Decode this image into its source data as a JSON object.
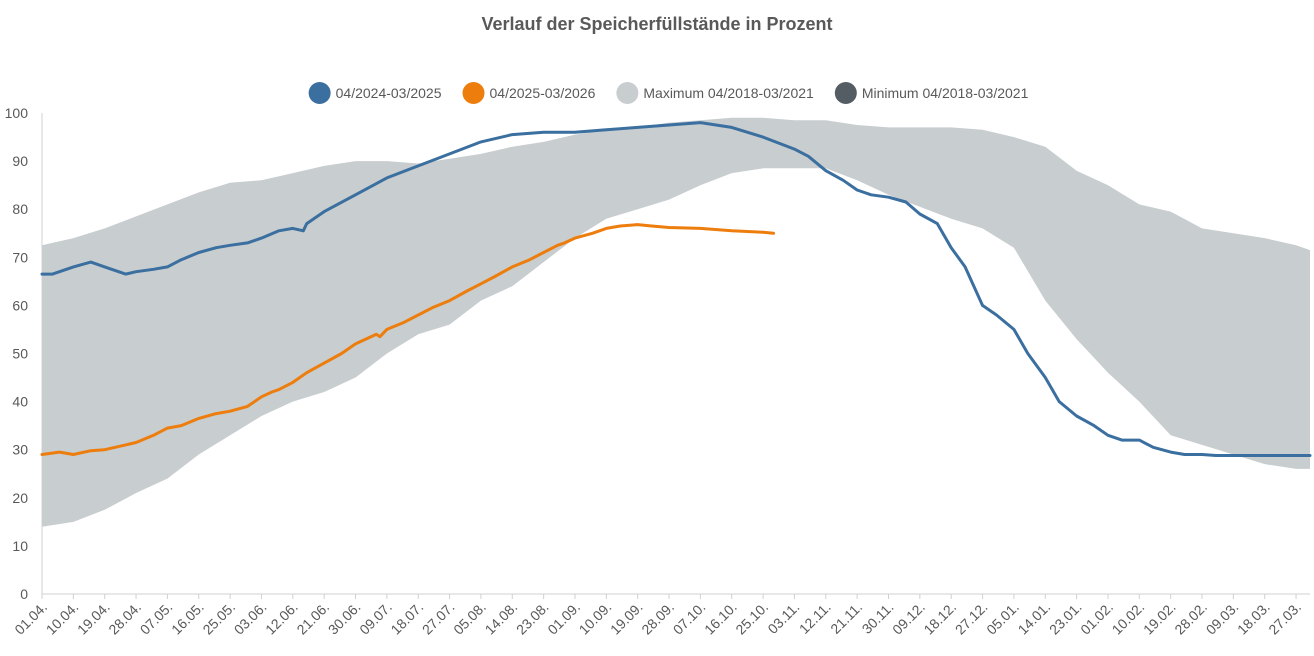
{
  "chart_data": {
    "type": "line",
    "title": "Verlauf der Speicherfüllstände in Prozent",
    "xlabel": "",
    "ylabel": "",
    "ylim": [
      0,
      100
    ],
    "yticks": [
      0,
      10,
      20,
      30,
      40,
      50,
      60,
      70,
      80,
      90,
      100
    ],
    "grid": false,
    "legend_position": "top",
    "x_labels": [
      "01.04.",
      "10.04.",
      "19.04.",
      "28.04.",
      "07.05.",
      "16.05.",
      "25.05.",
      "03.06.",
      "12.06.",
      "21.06.",
      "30.06.",
      "09.07.",
      "18.07.",
      "27.07.",
      "05.08.",
      "14.08.",
      "23.08.",
      "01.09.",
      "10.09.",
      "19.09.",
      "28.09.",
      "07.10.",
      "16.10.",
      "25.10.",
      "03.11.",
      "12.11.",
      "21.11.",
      "30.11.",
      "09.12.",
      "18.12.",
      "27.12.",
      "05.01.",
      "14.01.",
      "23.01.",
      "01.02.",
      "10.02.",
      "19.02.",
      "28.02.",
      "09.03.",
      "18.03.",
      "27.03."
    ],
    "legend": [
      {
        "label": "04/2024-03/2025",
        "color": "#3a6f9f"
      },
      {
        "label": "04/2025-03/2026",
        "color": "#ed7d0c"
      },
      {
        "label": "Maximum 04/2018-03/2021",
        "color": "#c8cdd0"
      },
      {
        "label": "Minimum 04/2018-03/2021",
        "color": "#535d63"
      }
    ],
    "band": {
      "name_max": "Maximum 04/2018-03/2021",
      "name_min": "Minimum 04/2018-03/2021",
      "x": [
        0,
        9,
        18,
        27,
        36,
        45,
        54,
        63,
        72,
        81,
        90,
        99,
        108,
        117,
        126,
        135,
        144,
        153,
        162,
        171,
        180,
        189,
        198,
        207,
        216,
        225,
        234,
        243,
        252,
        261,
        270,
        279,
        288,
        297,
        306,
        315,
        324,
        333,
        342,
        351,
        360,
        364
      ],
      "max": [
        72.5,
        74,
        76,
        78.5,
        81,
        83.5,
        85.5,
        86,
        87.5,
        89,
        90,
        90,
        89.5,
        90.5,
        91.5,
        93,
        94,
        95.5,
        96.5,
        97,
        98,
        98.5,
        99,
        99,
        98.5,
        98.5,
        97.5,
        97,
        97,
        97,
        96.5,
        95,
        93,
        88,
        85,
        81,
        79.5,
        76,
        75,
        74,
        72.5,
        71.5
      ],
      "min": [
        14,
        15,
        17.5,
        21,
        24,
        29,
        33,
        37,
        40,
        42,
        45,
        50,
        54,
        56,
        61,
        64,
        69,
        74,
        78,
        80,
        82,
        85,
        87.5,
        88.5,
        88.5,
        88.5,
        86,
        83,
        80.5,
        78,
        76,
        72,
        61,
        53,
        46,
        40,
        33,
        31,
        29,
        27,
        26,
        26
      ]
    },
    "series": [
      {
        "name": "04/2024-03/2025",
        "color": "#3a6f9f",
        "x": [
          0,
          3,
          9,
          14,
          18,
          24,
          27,
          32,
          36,
          40,
          45,
          50,
          54,
          59,
          63,
          68,
          72,
          75,
          76,
          81,
          90,
          99,
          108,
          117,
          126,
          135,
          144,
          153,
          162,
          171,
          180,
          189,
          198,
          207,
          216,
          220,
          225,
          230,
          234,
          238,
          243,
          248,
          252,
          257,
          261,
          265,
          270,
          274,
          279,
          283,
          288,
          292,
          297,
          302,
          306,
          310,
          315,
          319,
          324,
          328,
          333,
          337,
          342,
          346,
          351,
          355,
          360,
          364
        ],
        "values": [
          66.5,
          66.5,
          68,
          69,
          68,
          66.5,
          67,
          67.5,
          68,
          69.5,
          71,
          72,
          72.5,
          73,
          74,
          75.5,
          76,
          75.5,
          77,
          79.5,
          83,
          86.5,
          89,
          91.5,
          94,
          95.5,
          96,
          96,
          96.5,
          97,
          97.5,
          98,
          97,
          95,
          92.5,
          91,
          88,
          86,
          84,
          83,
          82.5,
          81.5,
          79,
          77,
          72,
          68,
          60,
          58,
          55,
          50,
          45,
          40,
          37,
          35,
          33,
          32,
          32,
          30.5,
          29.5,
          29,
          29,
          28.8,
          28.8,
          28.8,
          28.8,
          28.8,
          28.8,
          28.8
        ]
      },
      {
        "name": "04/2025-03/2026",
        "color": "#ed7d0c",
        "x": [
          0,
          5,
          9,
          14,
          18,
          24,
          27,
          32,
          36,
          40,
          45,
          50,
          54,
          59,
          63,
          66,
          68,
          72,
          76,
          81,
          86,
          90,
          96,
          97,
          99,
          104,
          108,
          112,
          117,
          122,
          126,
          130,
          135,
          140,
          144,
          148,
          150,
          153,
          158,
          162,
          166,
          171,
          175,
          180,
          189,
          198,
          207,
          210
        ],
        "values": [
          29,
          29.5,
          29,
          29.8,
          30,
          31,
          31.5,
          33,
          34.5,
          35,
          36.5,
          37.5,
          38,
          39,
          41,
          42,
          42.5,
          44,
          46,
          48,
          50,
          52,
          54,
          53.5,
          55,
          56.5,
          58,
          59.5,
          61,
          63,
          64.5,
          66,
          68,
          69.5,
          71,
          72.5,
          73,
          74,
          75,
          76,
          76.5,
          76.8,
          76.5,
          76.2,
          76,
          75.5,
          75.2,
          75
        ]
      }
    ]
  }
}
